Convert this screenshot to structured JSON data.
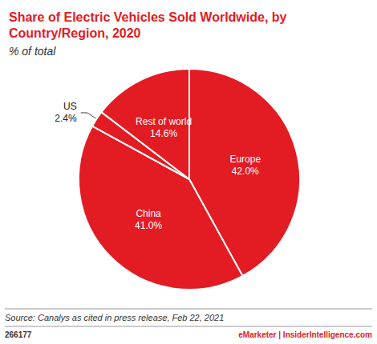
{
  "chart_data": {
    "type": "pie",
    "title": "Share of Electric Vehicles Sold Worldwide, by Country/Region, 2020",
    "subtitle": "% of total",
    "categories": [
      "Europe",
      "China",
      "US",
      "Rest of world"
    ],
    "values": [
      42.0,
      41.0,
      2.4,
      14.6
    ],
    "value_labels": [
      "42.0%",
      "41.0%",
      "2.4%",
      "14.6%"
    ],
    "color": "#e31b23",
    "data_labels": true,
    "source": "Source: Canalys as cited in press release, Feb 22, 2021",
    "chart_id": "266177",
    "credit": "eMarketer | InsiderIntelligence.com"
  }
}
